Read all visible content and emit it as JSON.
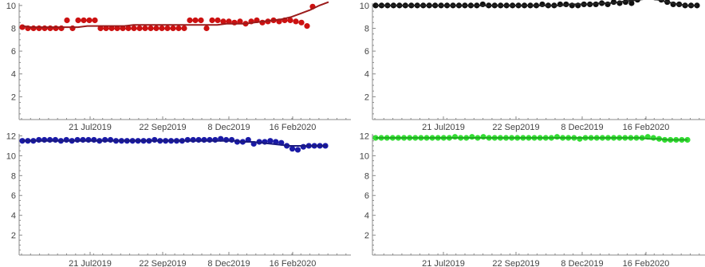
{
  "chart_data": [
    {
      "type": "scatter",
      "position": "top-left",
      "title": "",
      "xlabel": "",
      "ylabel": "",
      "x_ticks": [
        "21 Jul2019",
        "22 Sep2019",
        "8 Dec2019",
        "16 Feb2020"
      ],
      "y_ticks": [
        "2",
        "4",
        "6",
        "8",
        "10"
      ],
      "ylim": [
        0,
        10.2
      ],
      "point_color": "#cc1111",
      "fit_color": "#9b1b1b",
      "has_fit_line": true,
      "series": [
        {
          "values": [
            8.1,
            8.0,
            8.0,
            8.0,
            8.0,
            8.0,
            8.0,
            8.0,
            8.7,
            8.0,
            8.7,
            8.7,
            8.7,
            8.7,
            8.0,
            8.0,
            8.0,
            8.0,
            8.0,
            8.0,
            8.0,
            8.0,
            8.0,
            8.0,
            8.0,
            8.0,
            8.0,
            8.0,
            8.0,
            8.0,
            8.7,
            8.7,
            8.7,
            8.0,
            8.7,
            8.7,
            8.6,
            8.6,
            8.5,
            8.6,
            8.4,
            8.6,
            8.7,
            8.5,
            8.6,
            8.7,
            8.6,
            8.7,
            8.7,
            8.6,
            8.5,
            8.2,
            9.9
          ]
        }
      ],
      "fit_values": [
        8.2,
        8.1,
        8.1,
        8.1,
        8.1,
        8.1,
        8.1,
        8.2,
        8.2,
        8.2,
        8.2,
        8.2,
        8.3,
        8.3,
        8.3,
        8.3,
        8.3,
        8.3,
        8.3,
        8.3,
        8.3,
        8.3,
        8.4,
        8.4,
        8.4,
        8.5,
        8.6,
        8.7,
        8.8,
        9.0,
        9.3,
        9.6,
        10.0,
        10.3
      ]
    },
    {
      "type": "scatter",
      "position": "top-right",
      "title": "",
      "xlabel": "",
      "ylabel": "",
      "x_ticks": [
        "21 Jul2019",
        "22 Sep2019",
        "8 Dec2019",
        "16 Feb2020"
      ],
      "y_ticks": [
        "2",
        "4",
        "6",
        "8",
        "10"
      ],
      "ylim": [
        0,
        10.2
      ],
      "point_color": "#111111",
      "fit_color": "#222222",
      "has_fit_line": true,
      "series": [
        {
          "values": [
            10.0,
            10.0,
            10.0,
            10.0,
            10.0,
            10.0,
            10.0,
            10.0,
            10.0,
            10.0,
            10.0,
            10.0,
            10.0,
            10.0,
            10.0,
            10.0,
            10.0,
            10.0,
            10.1,
            10.0,
            10.0,
            10.0,
            10.0,
            10.0,
            10.0,
            10.0,
            10.0,
            10.0,
            10.1,
            10.0,
            10.0,
            10.1,
            10.1,
            10.0,
            10.0,
            10.1,
            10.1,
            10.1,
            10.2,
            10.1,
            10.3,
            10.2,
            10.3,
            10.2,
            10.5,
            10.8,
            11.0,
            10.7,
            10.5,
            10.3,
            10.1,
            10.1,
            10.0,
            10.0,
            10.0
          ]
        }
      ],
      "fit_values": [
        10.0,
        10.0,
        10.0,
        10.0,
        10.0,
        10.0,
        10.0,
        10.0,
        10.0,
        10.0,
        10.0,
        10.0,
        10.0,
        10.0,
        10.0,
        10.0,
        10.0,
        10.0,
        10.0,
        10.0,
        10.1,
        10.1,
        10.1,
        10.2,
        10.2,
        10.3,
        10.4,
        10.5,
        10.6,
        10.5,
        10.3,
        10.1,
        10.0,
        10.0
      ]
    },
    {
      "type": "scatter",
      "position": "bottom-left",
      "title": "",
      "xlabel": "",
      "ylabel": "",
      "x_ticks": [
        "21 Jul2019",
        "22 Sep2019",
        "8 Dec2019",
        "16 Feb2020"
      ],
      "y_ticks": [
        "2",
        "4",
        "6",
        "8",
        "10",
        "12"
      ],
      "ylim": [
        0,
        12.2
      ],
      "point_color": "#1a1aa6",
      "fit_color": "#1a1a80",
      "has_fit_line": true,
      "series": [
        {
          "values": [
            11.5,
            11.5,
            11.5,
            11.6,
            11.6,
            11.6,
            11.6,
            11.5,
            11.6,
            11.5,
            11.6,
            11.6,
            11.6,
            11.6,
            11.5,
            11.6,
            11.6,
            11.5,
            11.5,
            11.5,
            11.5,
            11.5,
            11.5,
            11.5,
            11.6,
            11.5,
            11.5,
            11.5,
            11.5,
            11.5,
            11.6,
            11.6,
            11.6,
            11.6,
            11.6,
            11.6,
            11.7,
            11.6,
            11.6,
            11.4,
            11.4,
            11.6,
            11.2,
            11.4,
            11.4,
            11.5,
            11.4,
            11.3,
            11.0,
            10.7,
            10.6,
            10.9,
            11.0,
            11.0,
            11.0,
            11.0
          ]
        }
      ],
      "fit_values": [
        11.5,
        11.5,
        11.5,
        11.5,
        11.5,
        11.5,
        11.5,
        11.5,
        11.5,
        11.5,
        11.5,
        11.5,
        11.5,
        11.5,
        11.5,
        11.5,
        11.5,
        11.5,
        11.5,
        11.5,
        11.5,
        11.5,
        11.5,
        11.5,
        11.4,
        11.4,
        11.3,
        11.2,
        11.1,
        11.0,
        11.0,
        11.0,
        11.0,
        11.0
      ]
    },
    {
      "type": "scatter",
      "position": "bottom-right",
      "title": "",
      "xlabel": "",
      "ylabel": "",
      "x_ticks": [
        "21 Jul2019",
        "22 Sep2019",
        "8 Dec2019",
        "16 Feb2020"
      ],
      "y_ticks": [
        "2",
        "4",
        "6",
        "8",
        "10",
        "12"
      ],
      "ylim": [
        0,
        12.2
      ],
      "point_color": "#33dd33",
      "fit_color": "#22aa22",
      "has_fit_line": true,
      "series": [
        {
          "values": [
            11.8,
            11.8,
            11.8,
            11.8,
            11.8,
            11.8,
            11.8,
            11.8,
            11.8,
            11.8,
            11.8,
            11.8,
            11.8,
            11.8,
            11.9,
            11.8,
            11.8,
            11.9,
            11.8,
            11.9,
            11.8,
            11.8,
            11.8,
            11.8,
            11.8,
            11.8,
            11.8,
            11.8,
            11.8,
            11.8,
            11.8,
            11.8,
            11.9,
            11.8,
            11.8,
            11.8,
            11.7,
            11.8,
            11.8,
            11.8,
            11.8,
            11.8,
            11.8,
            11.8,
            11.8,
            11.8,
            11.8,
            11.8,
            11.9,
            11.8,
            11.7,
            11.6,
            11.6,
            11.6,
            11.6,
            11.6
          ]
        }
      ],
      "fit_values": [
        11.8,
        11.8,
        11.8,
        11.8,
        11.8,
        11.8,
        11.8,
        11.8,
        11.8,
        11.8,
        11.8,
        11.8,
        11.8,
        11.8,
        11.8,
        11.8,
        11.8,
        11.8,
        11.8,
        11.8,
        11.8,
        11.8,
        11.8,
        11.8,
        11.8,
        11.8,
        11.8,
        11.8,
        11.8,
        11.7,
        11.7,
        11.6,
        11.6,
        11.6
      ]
    }
  ]
}
